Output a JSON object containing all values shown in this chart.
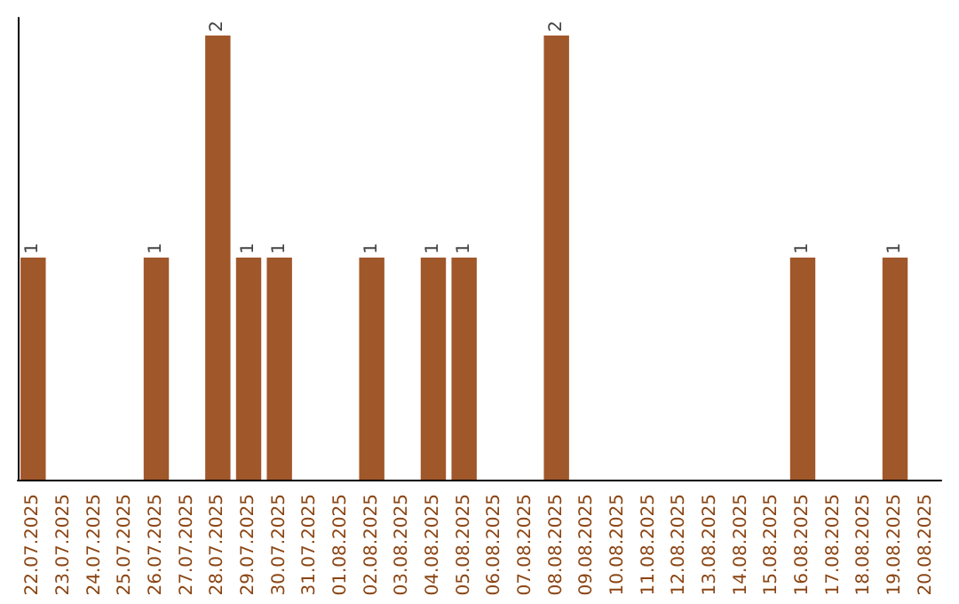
{
  "chart_data": {
    "type": "bar",
    "categories": [
      "22.07.2025",
      "23.07.2025",
      "24.07.2025",
      "25.07.2025",
      "26.07.2025",
      "27.07.2025",
      "28.07.2025",
      "29.07.2025",
      "30.07.2025",
      "31.07.2025",
      "01.08.2025",
      "02.08.2025",
      "03.08.2025",
      "04.08.2025",
      "05.08.2025",
      "06.08.2025",
      "07.08.2025",
      "08.08.2025",
      "09.08.2025",
      "10.08.2025",
      "11.08.2025",
      "12.08.2025",
      "13.08.2025",
      "14.08.2025",
      "15.08.2025",
      "16.08.2025",
      "17.08.2025",
      "18.08.2025",
      "19.08.2025",
      "20.08.2025"
    ],
    "values": [
      1,
      0,
      0,
      0,
      1,
      0,
      2,
      1,
      1,
      0,
      0,
      1,
      0,
      1,
      1,
      0,
      0,
      2,
      0,
      0,
      0,
      0,
      0,
      0,
      0,
      1,
      0,
      0,
      1,
      0
    ],
    "value_labels": [
      "1",
      null,
      null,
      null,
      "1",
      null,
      "2",
      "1",
      "1",
      null,
      null,
      "1",
      null,
      "1",
      "1",
      null,
      null,
      "2",
      null,
      null,
      null,
      null,
      null,
      null,
      null,
      "1",
      null,
      null,
      "1",
      null
    ],
    "color": "#a0572a",
    "grid": false,
    "tick_labels": "x"
  }
}
